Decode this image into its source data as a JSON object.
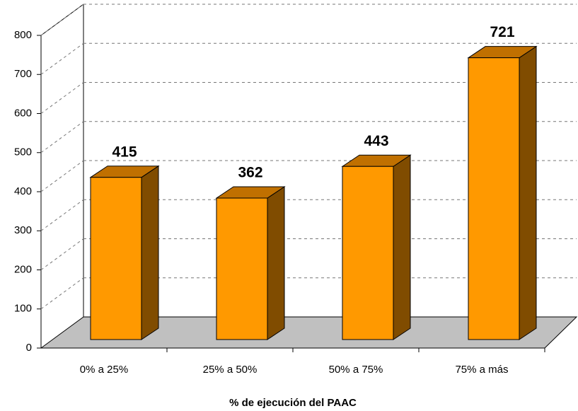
{
  "chart_data": {
    "type": "bar3d",
    "x_label": "% de ejecución del PAAC",
    "categories": [
      "0% a 25%",
      "25% a 50%",
      "50% a 75%",
      "75% a más"
    ],
    "values": [
      415,
      362,
      443,
      721
    ],
    "color": "#ff9900",
    "ylim": [
      0,
      800
    ],
    "yticks": [
      0,
      100,
      200,
      300,
      400,
      500,
      600,
      700,
      800
    ],
    "grid": true
  }
}
